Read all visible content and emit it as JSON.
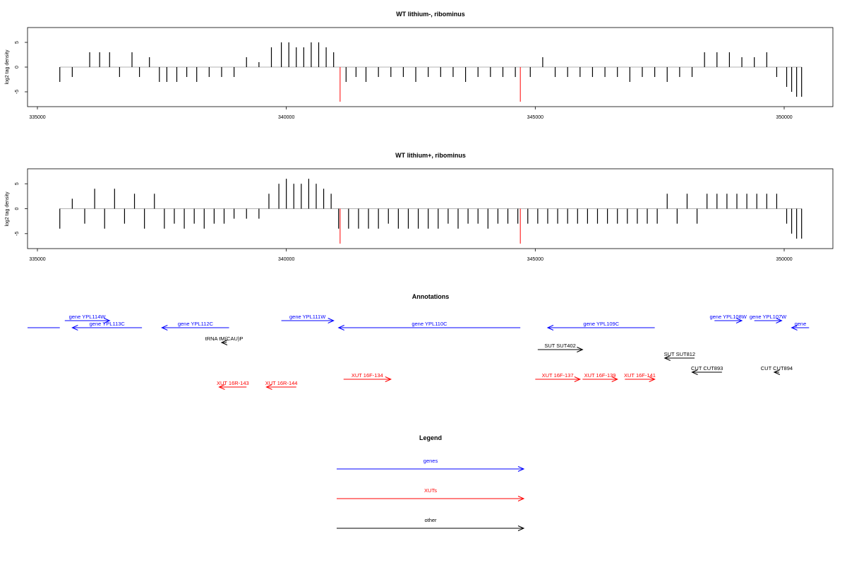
{
  "chart_data": [
    {
      "type": "bar",
      "title": "WT lithium-, ribominus",
      "ylabel": "log2 tag density",
      "xlim": [
        334500,
        350500
      ],
      "ylim": [
        -8,
        8
      ],
      "x_ticks": [
        "335000",
        "340000",
        "345000",
        "350000"
      ],
      "y_ticks": [
        "-5",
        "0",
        "5"
      ],
      "highlight_positions": [
        341080,
        344700
      ],
      "highlight_value": -7,
      "bar_color": "#000000",
      "highlight_color": "#ff0000",
      "series": [
        {
          "positions": [
            335450,
            335700,
            336050,
            336250,
            336450,
            336650,
            336900,
            337050,
            337250,
            337450,
            337600,
            337800,
            338000,
            338200,
            338450,
            338700,
            338950,
            339200,
            339450,
            339700,
            339900,
            340050,
            340200,
            340350,
            340500,
            340650,
            340800,
            340950,
            341200,
            341400,
            341600,
            341850,
            342100,
            342350,
            342600,
            342850,
            343100,
            343350,
            343600,
            343850,
            344100,
            344350,
            344600,
            344900,
            345150,
            345400,
            345650,
            345900,
            346150,
            346400,
            346650,
            346900,
            347150,
            347400,
            347650,
            347900,
            348150,
            348400,
            348650,
            348900,
            349150,
            349400,
            349650,
            349850,
            350050,
            350150,
            350250,
            350350
          ],
          "values": [
            -3,
            -2,
            3,
            3,
            3,
            -2,
            3,
            -2,
            2,
            -3,
            -3,
            -3,
            -2,
            -3,
            -2,
            -2,
            -2,
            2,
            1,
            4,
            5,
            5,
            4,
            4,
            5,
            5,
            4,
            3,
            -3,
            -2,
            -3,
            -2,
            -2,
            -2,
            -3,
            -2,
            -2,
            -2,
            -3,
            -2,
            -2,
            -2,
            -2,
            -2,
            2,
            -2,
            -2,
            -2,
            -2,
            -2,
            -2,
            -3,
            -2,
            -2,
            -3,
            -2,
            -2,
            3,
            3,
            3,
            2,
            2,
            3,
            -2,
            -4,
            -5,
            -6,
            -6
          ]
        }
      ]
    },
    {
      "type": "bar",
      "title": "WT lithium+, ribominus",
      "ylabel": "log2 tag density",
      "xlim": [
        334500,
        350500
      ],
      "ylim": [
        -8,
        8
      ],
      "x_ticks": [
        "335000",
        "340000",
        "345000",
        "350000"
      ],
      "y_ticks": [
        "-5",
        "0",
        "5"
      ],
      "highlight_positions": [
        341080,
        344700
      ],
      "highlight_value": -7,
      "bar_color": "#000000",
      "highlight_color": "#ff0000",
      "series": [
        {
          "positions": [
            335450,
            335700,
            335950,
            336150,
            336350,
            336550,
            336750,
            336950,
            337150,
            337350,
            337550,
            337750,
            337950,
            338150,
            338350,
            338550,
            338750,
            338950,
            339200,
            339450,
            339650,
            339850,
            340000,
            340150,
            340300,
            340450,
            340600,
            340750,
            340900,
            341050,
            341250,
            341450,
            341650,
            341850,
            342050,
            342250,
            342450,
            342650,
            342850,
            343050,
            343250,
            343450,
            343650,
            343850,
            344050,
            344250,
            344450,
            344650,
            344850,
            345050,
            345250,
            345450,
            345650,
            345850,
            346050,
            346250,
            346450,
            346650,
            346850,
            347050,
            347250,
            347450,
            347650,
            347850,
            348050,
            348250,
            348450,
            348650,
            348850,
            349050,
            349250,
            349450,
            349650,
            349850,
            350050,
            350150,
            350250,
            350350
          ],
          "values": [
            -4,
            2,
            -3,
            4,
            -4,
            4,
            -3,
            3,
            -4,
            3,
            -4,
            -3,
            -4,
            -3,
            -4,
            -3,
            -3,
            -2,
            -2,
            -2,
            3,
            5,
            6,
            5,
            5,
            6,
            5,
            4,
            3,
            -4,
            -4,
            -4,
            -4,
            -4,
            -3,
            -4,
            -4,
            -4,
            -4,
            -4,
            -3,
            -4,
            -3,
            -3,
            -4,
            -3,
            -3,
            -3,
            -3,
            -3,
            -3,
            -3,
            -3,
            -3,
            -3,
            -3,
            -3,
            -3,
            -3,
            -3,
            -3,
            -3,
            3,
            -3,
            3,
            -3,
            3,
            3,
            3,
            3,
            3,
            3,
            3,
            3,
            -3,
            -5,
            -6,
            -6
          ]
        }
      ]
    }
  ],
  "annotations": {
    "title": "Annotations",
    "features": [
      {
        "label": "",
        "start": 334500,
        "end": 335450,
        "strand": "+",
        "color": "#0000ff",
        "row": 2,
        "arrow": false
      },
      {
        "label": "gene YPL114W",
        "start": 335550,
        "end": 336450,
        "strand": "+",
        "color": "#0000ff",
        "row": 1,
        "arrow": true
      },
      {
        "label": "gene YPL113C",
        "start": 335700,
        "end": 337100,
        "strand": "-",
        "color": "#0000ff",
        "row": 2,
        "arrow": true
      },
      {
        "label": "gene YPL112C",
        "start": 337500,
        "end": 338850,
        "strand": "-",
        "color": "#0000ff",
        "row": 2,
        "arrow": true
      },
      {
        "label": "gene YPL111W",
        "start": 339900,
        "end": 340950,
        "strand": "+",
        "color": "#0000ff",
        "row": 1,
        "arrow": true
      },
      {
        "label": "gene YPL110C",
        "start": 341050,
        "end": 344700,
        "strand": "-",
        "color": "#0000ff",
        "row": 2,
        "arrow": true
      },
      {
        "label": "gene YPL109C",
        "start": 345250,
        "end": 347400,
        "strand": "-",
        "color": "#0000ff",
        "row": 2,
        "arrow": true
      },
      {
        "label": "gene YPL108W",
        "start": 348600,
        "end": 349150,
        "strand": "+",
        "color": "#0000ff",
        "row": 1,
        "arrow": true
      },
      {
        "label": "gene YPL107W",
        "start": 349400,
        "end": 349950,
        "strand": "+",
        "color": "#0000ff",
        "row": 1,
        "arrow": true
      },
      {
        "label": "gene",
        "start": 350150,
        "end": 350500,
        "strand": "-",
        "color": "#0000ff",
        "row": 2,
        "arrow": true
      },
      {
        "label": "tRNA tM(CAU)P",
        "start": 338700,
        "end": 338800,
        "strand": "-",
        "color": "#000000",
        "row": 3,
        "arrow": true
      },
      {
        "label": "SUT SUT402",
        "start": 345050,
        "end": 345950,
        "strand": "+",
        "color": "#000000",
        "row": 4,
        "arrow": true
      },
      {
        "label": "SUT SUT812",
        "start": 347600,
        "end": 348200,
        "strand": "-",
        "color": "#000000",
        "row": 5,
        "arrow": true
      },
      {
        "label": "CUT CUT893",
        "start": 348150,
        "end": 348750,
        "strand": "-",
        "color": "#000000",
        "row": 6,
        "arrow": true
      },
      {
        "label": "CUT CUT894",
        "start": 349800,
        "end": 349900,
        "strand": "-",
        "color": "#000000",
        "row": 6,
        "arrow": true
      },
      {
        "label": "XUT 16F-134",
        "start": 341150,
        "end": 342100,
        "strand": "+",
        "color": "#ff0000",
        "row": 7,
        "arrow": true
      },
      {
        "label": "XUT 16F-137",
        "start": 345000,
        "end": 345900,
        "strand": "+",
        "color": "#ff0000",
        "row": 7,
        "arrow": true
      },
      {
        "label": "XUT 16F-139",
        "start": 345950,
        "end": 346650,
        "strand": "+",
        "color": "#ff0000",
        "row": 7,
        "arrow": true
      },
      {
        "label": "XUT 16F-141",
        "start": 346800,
        "end": 347400,
        "strand": "+",
        "color": "#ff0000",
        "row": 7,
        "arrow": true
      },
      {
        "label": "XUT 16R-143",
        "start": 338650,
        "end": 339200,
        "strand": "-",
        "color": "#ff0000",
        "row": 8,
        "arrow": true
      },
      {
        "label": "XUT 16R-144",
        "start": 339600,
        "end": 340200,
        "strand": "-",
        "color": "#ff0000",
        "row": 8,
        "arrow": true
      }
    ]
  },
  "legend": {
    "title": "Legend",
    "items": [
      {
        "label": "genes",
        "color": "#0000ff"
      },
      {
        "label": "XUTs",
        "color": "#ff0000"
      },
      {
        "label": "other",
        "color": "#000000"
      }
    ]
  }
}
